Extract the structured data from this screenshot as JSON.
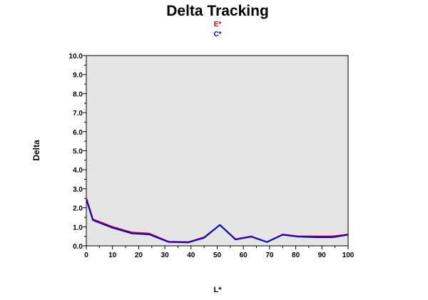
{
  "chart_data": {
    "type": "line",
    "title": "Delta Tracking",
    "xlabel": "L*",
    "ylabel": "Delta",
    "xlim": [
      0,
      100
    ],
    "ylim": [
      0,
      10
    ],
    "x_ticks": [
      0,
      10,
      20,
      30,
      40,
      50,
      60,
      70,
      80,
      90,
      100
    ],
    "y_ticks": [
      0.0,
      1.0,
      2.0,
      3.0,
      4.0,
      5.0,
      6.0,
      7.0,
      8.0,
      9.0,
      10.0
    ],
    "legend_position": "top-center",
    "plot_background": "#e5e5e5",
    "series": [
      {
        "name": "E*",
        "color": "#e00000",
        "x": [
          0,
          2.5,
          10,
          17.5,
          24,
          31.5,
          39,
          45,
          51,
          57,
          63,
          69,
          75,
          81,
          88,
          94,
          100
        ],
        "y": [
          2.5,
          1.4,
          1.0,
          0.7,
          0.65,
          0.22,
          0.2,
          0.45,
          1.1,
          0.35,
          0.5,
          0.2,
          0.6,
          0.5,
          0.5,
          0.5,
          0.6
        ]
      },
      {
        "name": "C*",
        "color": "#0000dd",
        "x": [
          0,
          2.5,
          10,
          17.5,
          24,
          31.5,
          39,
          45,
          51,
          57,
          63,
          69,
          75,
          81,
          88,
          94,
          100
        ],
        "y": [
          2.45,
          1.35,
          0.95,
          0.65,
          0.6,
          0.2,
          0.18,
          0.42,
          1.1,
          0.33,
          0.48,
          0.2,
          0.58,
          0.48,
          0.45,
          0.45,
          0.58
        ]
      }
    ]
  }
}
